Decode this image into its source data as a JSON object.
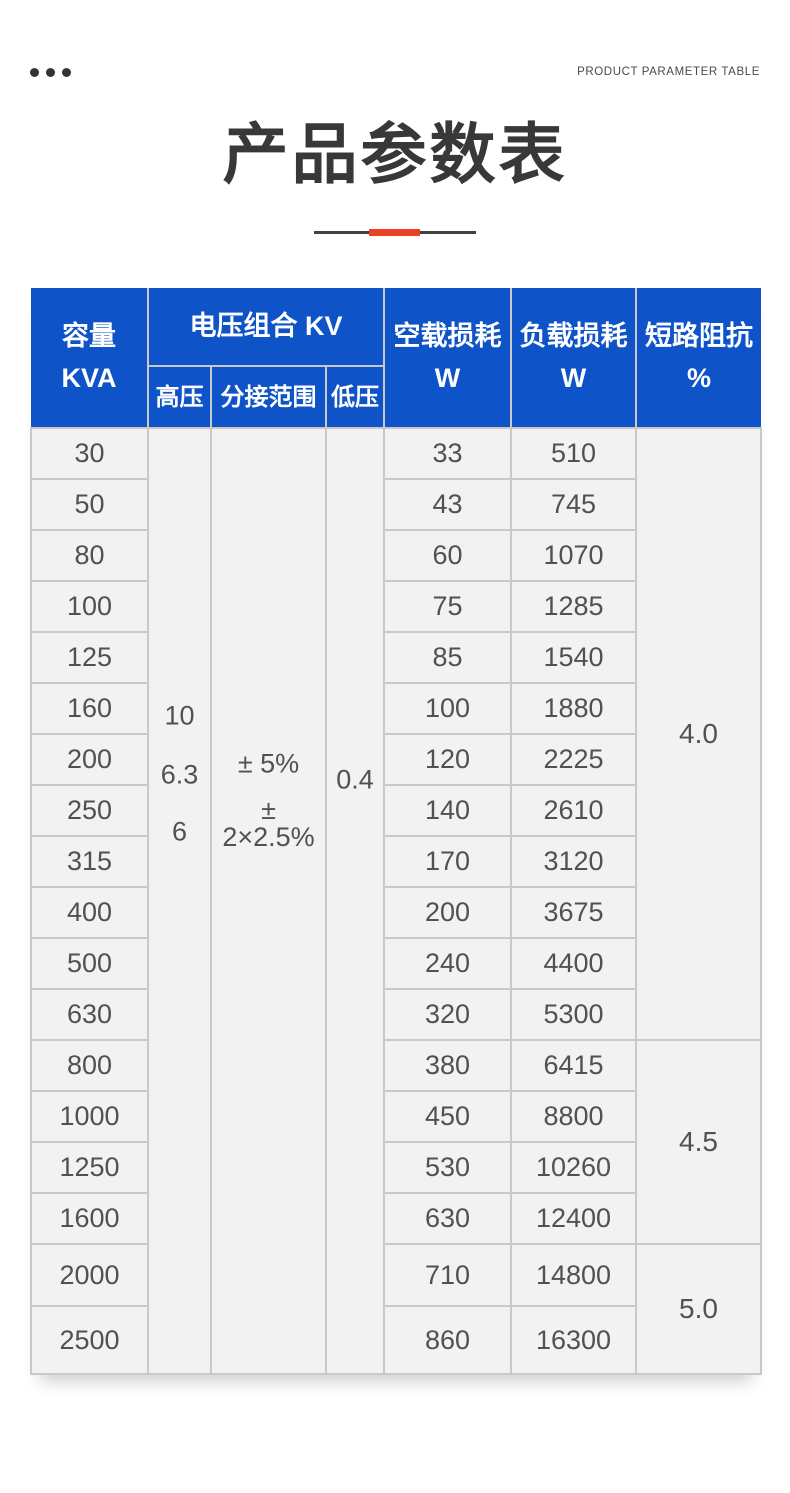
{
  "topbar": {
    "eyebrow": "PRODUCT PARAMETER TABLE"
  },
  "title": "产品参数表",
  "table": {
    "columns": {
      "capacity": [
        "容量",
        "KVA"
      ],
      "voltage_group": "电压组合 KV",
      "high_voltage": "高压",
      "tap_range": "分接范围",
      "low_voltage": "低压",
      "no_load_loss": [
        "空载损耗",
        "W"
      ],
      "load_loss": [
        "负载损耗",
        "W"
      ],
      "impedance": [
        "短路阻抗",
        "%"
      ]
    },
    "merged": {
      "high_voltage_values": [
        "10",
        "6.3",
        "6"
      ],
      "tap_range_values": [
        "± 5%",
        "± 2×2.5%"
      ],
      "low_voltage_value": "0.4"
    },
    "rows": [
      {
        "kva": "30",
        "no_load": "33",
        "load": "510"
      },
      {
        "kva": "50",
        "no_load": "43",
        "load": "745"
      },
      {
        "kva": "80",
        "no_load": "60",
        "load": "1070"
      },
      {
        "kva": "100",
        "no_load": "75",
        "load": "1285"
      },
      {
        "kva": "125",
        "no_load": "85",
        "load": "1540"
      },
      {
        "kva": "160",
        "no_load": "100",
        "load": "1880"
      },
      {
        "kva": "200",
        "no_load": "120",
        "load": "2225"
      },
      {
        "kva": "250",
        "no_load": "140",
        "load": "2610"
      },
      {
        "kva": "315",
        "no_load": "170",
        "load": "3120"
      },
      {
        "kva": "400",
        "no_load": "200",
        "load": "3675"
      },
      {
        "kva": "500",
        "no_load": "240",
        "load": "4400"
      },
      {
        "kva": "630",
        "no_load": "320",
        "load": "5300"
      },
      {
        "kva": "800",
        "no_load": "380",
        "load": "6415"
      },
      {
        "kva": "1000",
        "no_load": "450",
        "load": "8800"
      },
      {
        "kva": "1250",
        "no_load": "530",
        "load": "10260"
      },
      {
        "kva": "1600",
        "no_load": "630",
        "load": "12400"
      },
      {
        "kva": "2000",
        "no_load": "710",
        "load": "14800"
      },
      {
        "kva": "2500",
        "no_load": "860",
        "load": "16300"
      }
    ],
    "impedance_groups": [
      {
        "value": "4.0",
        "row_span": 12
      },
      {
        "value": "4.5",
        "row_span": 4
      },
      {
        "value": "5.0",
        "row_span": 2
      }
    ]
  },
  "colors": {
    "header_blue": "#0e53c8",
    "accent_red": "#ee4024",
    "divider_dark": "#404040",
    "body_bg": "#f2f2f2",
    "border": "#c9c9c9",
    "text_dark": "#515155",
    "title_dark": "#383838"
  }
}
